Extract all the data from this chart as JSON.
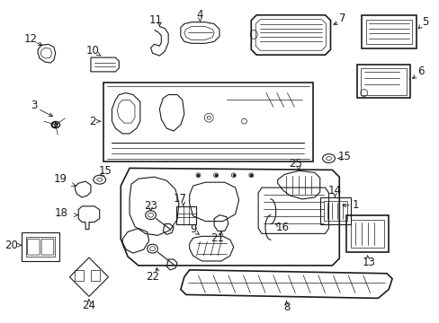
{
  "bg_color": "#ffffff",
  "line_color": "#1a1a1a",
  "fig_width": 4.89,
  "fig_height": 3.6,
  "dpi": 100,
  "font_size": 8.5,
  "lw_thin": 0.5,
  "lw_med": 0.8,
  "lw_thick": 1.2
}
